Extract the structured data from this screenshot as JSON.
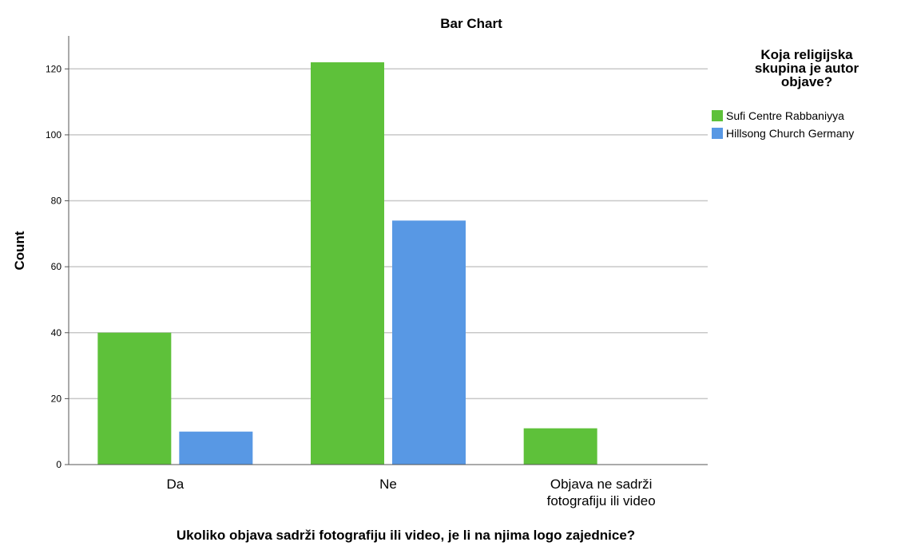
{
  "chart_data": {
    "type": "bar",
    "title": "Bar Chart",
    "xlabel": "Ukoliko objava sadrži fotografiju ili video, je li na njima logo zajednice?",
    "ylabel": "Count",
    "categories": [
      [
        "Da"
      ],
      [
        "Ne"
      ],
      [
        "Objava ne sadrži",
        "fotografiju ili video"
      ]
    ],
    "series": [
      {
        "name": "Sufi Centre Rabbaniyya",
        "color": "#5ec13a",
        "values": [
          40,
          122,
          11
        ]
      },
      {
        "name": "Hillsong Church Germany",
        "color": "#5898e4",
        "values": [
          10,
          74,
          0
        ]
      }
    ],
    "ylim": [
      0,
      130
    ],
    "yticks": [
      0,
      20,
      40,
      60,
      80,
      100,
      120
    ],
    "grid": true,
    "legend": {
      "title": [
        "Koja religijska",
        "skupina je autor",
        "objave?"
      ],
      "placement": "right"
    }
  }
}
